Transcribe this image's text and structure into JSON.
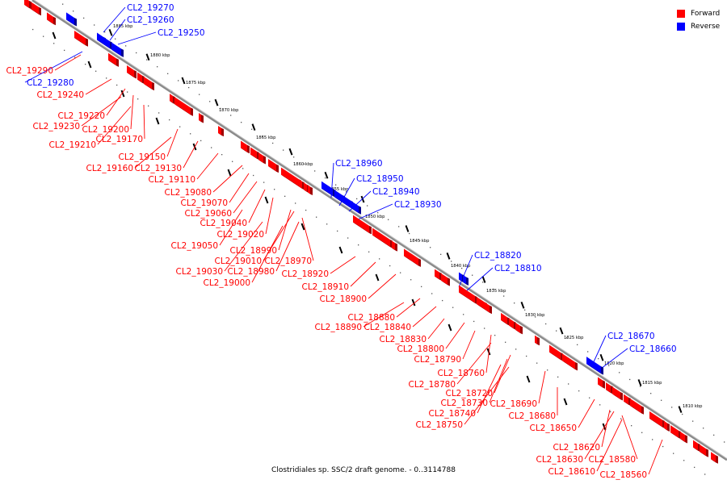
{
  "legend": [
    {
      "label": "Forward",
      "color": "#ff0000"
    },
    {
      "label": "Reverse",
      "color": "#0000ff"
    }
  ],
  "caption": "Clostridiales sp. SSC/2 draft genome. - 0..3114788",
  "ticks": [
    "1885 kbp",
    "1880 kbp",
    "1875 kbp",
    "1870 kbp",
    "1865 kbp",
    "1860 kbp",
    "1855 kbp",
    "1850 kbp",
    "1845 kbp",
    "1840 kbp",
    "1835 kbp",
    "1830 kbp",
    "1825 kbp",
    "1820 kbp",
    "1815 kbp",
    "1810 kbp"
  ],
  "reverse_labels": [
    "CL2_19270",
    "CL2_19260",
    "CL2_19250",
    "CL2_19280",
    "CL2_18960",
    "CL2_18950",
    "CL2_18940",
    "CL2_18930",
    "CL2_18820",
    "CL2_18810",
    "CL2_18670",
    "CL2_18660"
  ],
  "forward_labels": [
    "CL2_19290",
    "CL2_19240",
    "CL2_19220",
    "CL2_19230",
    "CL2_19200",
    "CL2_19210",
    "CL2_19170",
    "CL2_19150",
    "CL2_19160",
    "CL2_19130",
    "CL2_19110",
    "CL2_19080",
    "CL2_19070",
    "CL2_19060",
    "CL2_19040",
    "CL2_19050",
    "CL2_19020",
    "CL2_18990",
    "CL2_19010",
    "CL2_18970",
    "CL2_19030",
    "CL2_18980",
    "CL2_19000",
    "CL2_18920",
    "CL2_18910",
    "CL2_18900",
    "CL2_18880",
    "CL2_18890",
    "CL2_18840",
    "CL2_18830",
    "CL2_18800",
    "CL2_18790",
    "CL2_18760",
    "CL2_18780",
    "CL2_18720",
    "CL2_18730",
    "CL2_18690",
    "CL2_18740",
    "CL2_18680",
    "CL2_18750",
    "CL2_18650",
    "CL2_18620",
    "CL2_18630",
    "CL2_18580",
    "CL2_18610",
    "CL2_18560"
  ],
  "colors": {
    "forward": "#ff0000",
    "reverse": "#0000ff",
    "backbone": "#808080"
  }
}
